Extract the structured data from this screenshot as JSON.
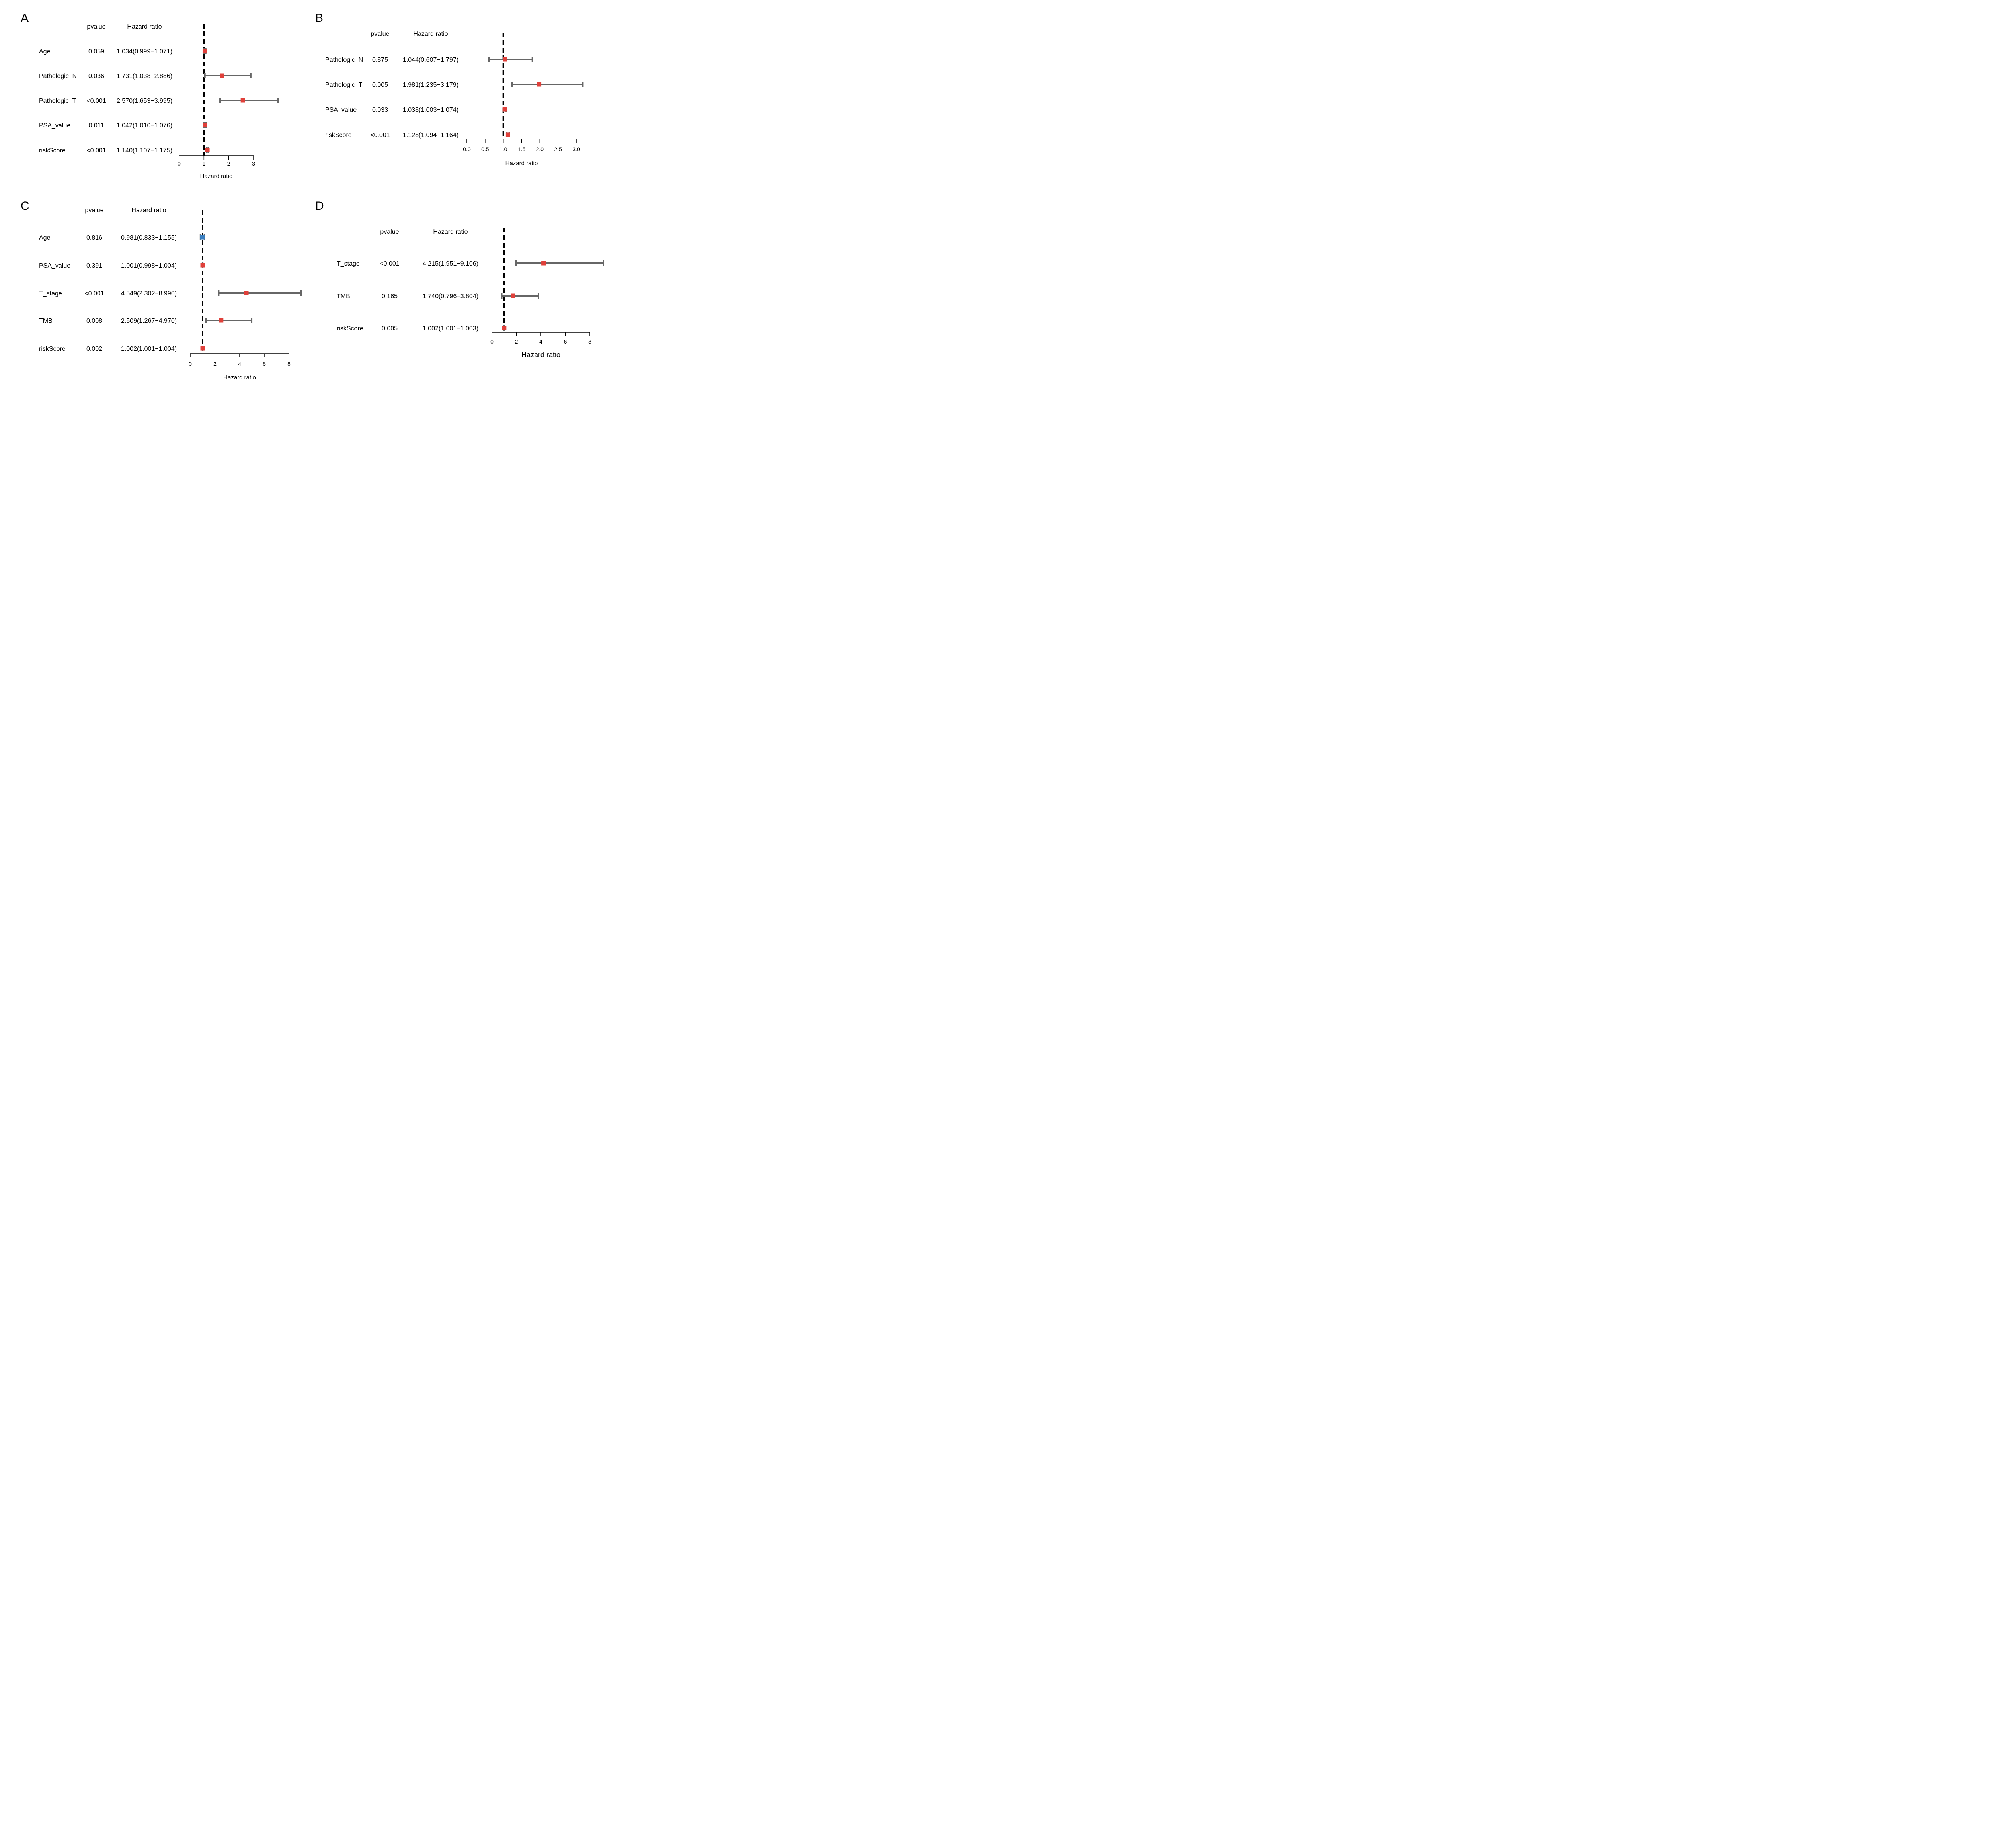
{
  "chart_data": [
    {
      "type": "forest",
      "panel": "A",
      "pvalue_header": "pvalue",
      "hr_header": "Hazard ratio",
      "xlabel": "Hazard ratio",
      "xlim": [
        0,
        3
      ],
      "xticks": [
        "0",
        "1",
        "2",
        "3"
      ],
      "reference_line": 1,
      "rows": [
        {
          "variable": "Age",
          "pvalue": "0.059",
          "hr_text": "1.034(0.999−1.071)",
          "hr": 1.034,
          "lower": 0.999,
          "upper": 1.071,
          "color": "#e0403a"
        },
        {
          "variable": "Pathologic_N",
          "pvalue": "0.036",
          "hr_text": "1.731(1.038−2.886)",
          "hr": 1.731,
          "lower": 1.038,
          "upper": 2.886,
          "color": "#e0403a"
        },
        {
          "variable": "Pathologic_T",
          "pvalue": "<0.001",
          "hr_text": "2.570(1.653−3.995)",
          "hr": 2.57,
          "lower": 1.653,
          "upper": 3.995,
          "color": "#e0403a"
        },
        {
          "variable": "PSA_value",
          "pvalue": "0.011",
          "hr_text": "1.042(1.010−1.076)",
          "hr": 1.042,
          "lower": 1.01,
          "upper": 1.076,
          "color": "#e0403a"
        },
        {
          "variable": "riskScore",
          "pvalue": "<0.001",
          "hr_text": "1.140(1.107−1.175)",
          "hr": 1.14,
          "lower": 1.107,
          "upper": 1.175,
          "color": "#e0403a"
        }
      ]
    },
    {
      "type": "forest",
      "panel": "B",
      "pvalue_header": "pvalue",
      "hr_header": "Hazard ratio",
      "xlabel": "Hazard ratio",
      "xlim": [
        0,
        3
      ],
      "xticks": [
        "0.0",
        "0.5",
        "1.0",
        "1.5",
        "2.0",
        "2.5",
        "3.0"
      ],
      "reference_line": 1,
      "rows": [
        {
          "variable": "Pathologic_N",
          "pvalue": "0.875",
          "hr_text": "1.044(0.607−1.797)",
          "hr": 1.044,
          "lower": 0.607,
          "upper": 1.797,
          "color": "#e0403a"
        },
        {
          "variable": "Pathologic_T",
          "pvalue": "0.005",
          "hr_text": "1.981(1.235−3.179)",
          "hr": 1.981,
          "lower": 1.235,
          "upper": 3.179,
          "color": "#e0403a"
        },
        {
          "variable": "PSA_value",
          "pvalue": "0.033",
          "hr_text": "1.038(1.003−1.074)",
          "hr": 1.038,
          "lower": 1.003,
          "upper": 1.074,
          "color": "#e0403a"
        },
        {
          "variable": "riskScore",
          "pvalue": "<0.001",
          "hr_text": "1.128(1.094−1.164)",
          "hr": 1.128,
          "lower": 1.094,
          "upper": 1.164,
          "color": "#e0403a"
        }
      ]
    },
    {
      "type": "forest",
      "panel": "C",
      "pvalue_header": "pvalue",
      "hr_header": "Hazard ratio",
      "xlabel": "Hazard ratio",
      "xlim": [
        0,
        8
      ],
      "xticks": [
        "0",
        "2",
        "4",
        "6",
        "8"
      ],
      "reference_line": 1,
      "rows": [
        {
          "variable": "Age",
          "pvalue": "0.816",
          "hr_text": "0.981(0.833−1.155)",
          "hr": 0.981,
          "lower": 0.833,
          "upper": 1.155,
          "color": "#3a7fc1"
        },
        {
          "variable": "PSA_value",
          "pvalue": "0.391",
          "hr_text": "1.001(0.998−1.004)",
          "hr": 1.001,
          "lower": 0.998,
          "upper": 1.004,
          "color": "#e0403a"
        },
        {
          "variable": "T_stage",
          "pvalue": "<0.001",
          "hr_text": "4.549(2.302−8.990)",
          "hr": 4.549,
          "lower": 2.302,
          "upper": 8.99,
          "color": "#e0403a"
        },
        {
          "variable": "TMB",
          "pvalue": "0.008",
          "hr_text": "2.509(1.267−4.970)",
          "hr": 2.509,
          "lower": 1.267,
          "upper": 4.97,
          "color": "#e0403a"
        },
        {
          "variable": "riskScore",
          "pvalue": "0.002",
          "hr_text": "1.002(1.001−1.004)",
          "hr": 1.002,
          "lower": 1.001,
          "upper": 1.004,
          "color": "#e0403a"
        }
      ]
    },
    {
      "type": "forest",
      "panel": "D",
      "pvalue_header": "pvalue",
      "hr_header": "Hazard ratio",
      "xlabel": "Hazard ratio",
      "xlim": [
        0,
        8
      ],
      "xticks": [
        "0",
        "2",
        "4",
        "6",
        "8"
      ],
      "reference_line": 1,
      "rows": [
        {
          "variable": "T_stage",
          "pvalue": "<0.001",
          "hr_text": "4.215(1.951−9.106)",
          "hr": 4.215,
          "lower": 1.951,
          "upper": 9.106,
          "color": "#e0403a"
        },
        {
          "variable": "TMB",
          "pvalue": "0.165",
          "hr_text": "1.740(0.796−3.804)",
          "hr": 1.74,
          "lower": 0.796,
          "upper": 3.804,
          "color": "#e0403a"
        },
        {
          "variable": "riskScore",
          "pvalue": "0.005",
          "hr_text": "1.002(1.001−1.003)",
          "hr": 1.002,
          "lower": 1.001,
          "upper": 1.003,
          "color": "#e0403a"
        }
      ]
    }
  ]
}
